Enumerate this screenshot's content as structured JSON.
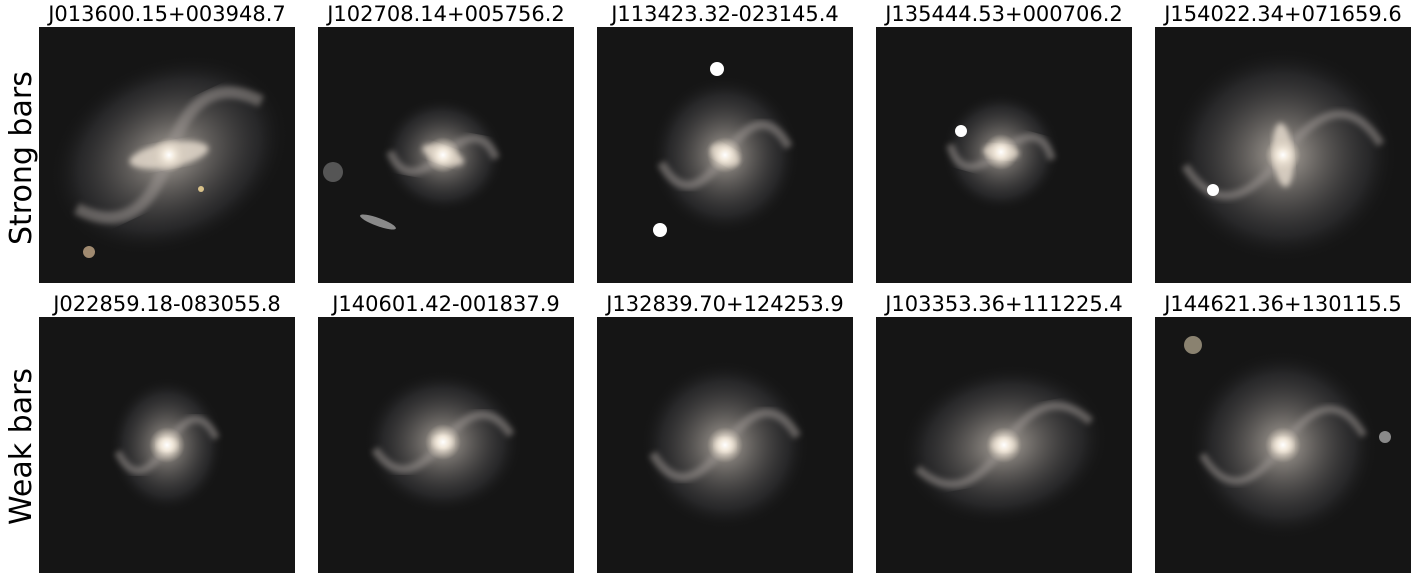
{
  "rows": [
    {
      "label": "Strong bars",
      "panels": [
        {
          "title": "J013600.15+003948.7"
        },
        {
          "title": "J102708.14+005756.2"
        },
        {
          "title": "J113423.32-023145.4"
        },
        {
          "title": "J135444.53+000706.2"
        },
        {
          "title": "J154022.34+071659.6"
        }
      ]
    },
    {
      "label": "Weak bars",
      "panels": [
        {
          "title": "J022859.18-083055.8"
        },
        {
          "title": "J140601.42-001837.9"
        },
        {
          "title": "J132839.70+124253.9"
        },
        {
          "title": "J103353.36+111225.4"
        },
        {
          "title": "J144621.36+130115.5"
        }
      ]
    }
  ]
}
